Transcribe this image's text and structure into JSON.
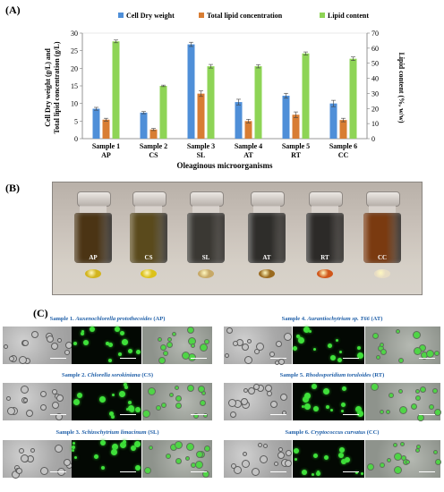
{
  "panels": {
    "a": "(A)",
    "b": "(B)",
    "c": "(C)"
  },
  "chart_data": {
    "type": "bar",
    "legend": [
      "Cell Dry weight",
      "Total lipid concentration",
      "Lipid content"
    ],
    "legend_position": "top",
    "colors": [
      "#4f8fd8",
      "#d87d33",
      "#8ed456"
    ],
    "categories": [
      {
        "line1": "Sample 1",
        "line2": "AP"
      },
      {
        "line1": "Sample 2",
        "line2": "CS"
      },
      {
        "line1": "Sample 3",
        "line2": "SL"
      },
      {
        "line1": "Sample 4",
        "line2": "AT"
      },
      {
        "line1": "Sample 5",
        "line2": "RT"
      },
      {
        "line1": "Sample 6",
        "line2": "CC"
      }
    ],
    "series": [
      {
        "name": "Cell Dry weight",
        "axis": "left",
        "values": [
          8.5,
          7.4,
          26.8,
          10.4,
          12.2,
          10.0
        ],
        "errors": [
          0.4,
          0.3,
          0.6,
          0.8,
          0.7,
          0.9
        ]
      },
      {
        "name": "Total lipid concentration",
        "axis": "left",
        "values": [
          5.4,
          2.6,
          12.8,
          5.0,
          6.8,
          5.3
        ],
        "errors": [
          0.4,
          0.3,
          0.8,
          0.5,
          0.8,
          0.5
        ]
      },
      {
        "name": "Lipid content",
        "axis": "right",
        "values": [
          64.5,
          35.0,
          48.0,
          48.0,
          56.5,
          53.0
        ],
        "errors": [
          0.9,
          0.5,
          1.2,
          1.1,
          1.0,
          1.2
        ]
      }
    ],
    "xlabel": "Oleaginous microorganisms",
    "ylabel_left": [
      "Cell Dry weight (g/L) and",
      "Total lipid concentration (g/L)"
    ],
    "ylabel_right": "Lipid content (%, w/w)",
    "ylim_left": [
      0,
      30
    ],
    "yticks_left": [
      0,
      5,
      10,
      15,
      20,
      25,
      30
    ],
    "ylim_right": [
      0,
      70
    ],
    "yticks_right": [
      0,
      10,
      20,
      30,
      40,
      50,
      60,
      70
    ]
  },
  "vials": [
    {
      "label": "AP",
      "liquid": "#4b3414",
      "drop": "#d2b41e"
    },
    {
      "label": "CS",
      "liquid": "#5a4a1c",
      "drop": "#dcc21a"
    },
    {
      "label": "SL",
      "liquid": "#3a3833",
      "drop": "#c7a967"
    },
    {
      "label": "AT",
      "liquid": "#2e2d2a",
      "drop": "#9a6a1f"
    },
    {
      "label": "RT",
      "liquid": "#2c2a28",
      "drop": "#d0561a"
    },
    {
      "label": "CC",
      "liquid": "#7a3a10",
      "drop": "#e7dcc4"
    }
  ],
  "micrographs": [
    {
      "prefix": "Sample 1.",
      "species": "Auxenochlorella protothecoides",
      "abbr": "(AP)"
    },
    {
      "prefix": "Sample 2.",
      "species": "Chlorella sorokiniana",
      "abbr": "(CS)"
    },
    {
      "prefix": "Sample 3.",
      "species": "Schizochytrium limacinum",
      "abbr": "(SL)"
    },
    {
      "prefix": "Sample 4.",
      "species": "Aurantiochytrium sp. T66",
      "abbr": "(AT)"
    },
    {
      "prefix": "Sample 5.",
      "species": "Rhodosporidium toruloides",
      "abbr": "(RT)"
    },
    {
      "prefix": "Sample 6.",
      "species": "Cryptococcus curvatus",
      "abbr": "(CC)"
    }
  ]
}
